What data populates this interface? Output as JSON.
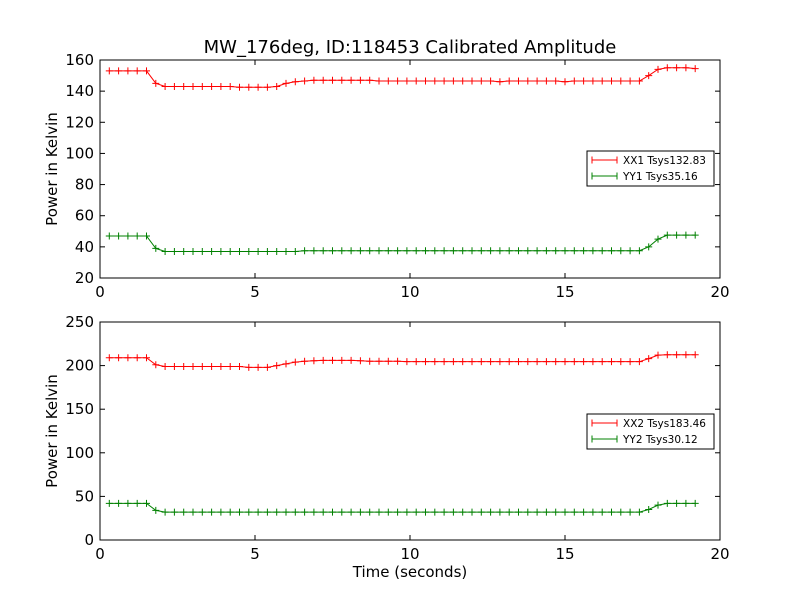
{
  "title": "MW_176deg, ID:118453 Calibrated Amplitude",
  "colors": {
    "xx": "#ff0000",
    "yy": "#008000",
    "axes": "#000000",
    "background": "#ffffff"
  },
  "chart_data": [
    {
      "type": "line",
      "title": "MW_176deg, ID:118453 Calibrated Amplitude",
      "xlabel": "",
      "ylabel": "Power in Kelvin",
      "xlim": [
        0,
        20
      ],
      "ylim": [
        20,
        160
      ],
      "xticks": [
        0,
        5,
        10,
        15,
        20
      ],
      "yticks": [
        20,
        40,
        60,
        80,
        100,
        120,
        140,
        160
      ],
      "grid": false,
      "legend_position": "center-right",
      "x": [
        0.3,
        0.6,
        0.9,
        1.2,
        1.5,
        1.8,
        2.1,
        2.4,
        2.7,
        3.0,
        3.3,
        3.6,
        3.9,
        4.2,
        4.5,
        4.8,
        5.1,
        5.4,
        5.7,
        6.0,
        6.3,
        6.6,
        6.9,
        7.2,
        7.5,
        7.8,
        8.1,
        8.4,
        8.7,
        9.0,
        9.3,
        9.6,
        9.9,
        10.2,
        10.5,
        10.8,
        11.1,
        11.4,
        11.7,
        12.0,
        12.3,
        12.6,
        12.9,
        13.2,
        13.5,
        13.8,
        14.1,
        14.4,
        14.7,
        15.0,
        15.3,
        15.6,
        15.9,
        16.2,
        16.5,
        16.8,
        17.1,
        17.4,
        17.7,
        18.0,
        18.3,
        18.6,
        18.9,
        19.2
      ],
      "series": [
        {
          "name": "XX1 Tsys132.83",
          "color": "#ff0000",
          "values": [
            153,
            153,
            153,
            153,
            153,
            145,
            143,
            143,
            143,
            143,
            143,
            143,
            143,
            143,
            142.5,
            142.5,
            142.5,
            142.5,
            143,
            145,
            146,
            146.5,
            147,
            147,
            147,
            147,
            147,
            147,
            147,
            146.5,
            146.5,
            146.5,
            146.5,
            146.5,
            146.5,
            146.5,
            146.5,
            146.5,
            146.5,
            146.5,
            146.5,
            146.5,
            146,
            146.5,
            146.5,
            146.5,
            146.5,
            146.5,
            146.5,
            146,
            146.5,
            146.5,
            146.5,
            146.5,
            146.5,
            146.5,
            146.5,
            146.5,
            150,
            154,
            155,
            155,
            155,
            154.5
          ]
        },
        {
          "name": "YY1 Tsys35.16",
          "color": "#008000",
          "values": [
            47,
            47,
            47,
            47,
            47,
            39,
            37,
            37,
            37,
            37,
            37,
            37,
            37,
            37,
            37,
            37,
            37,
            37,
            37,
            37,
            37,
            37.5,
            37.5,
            37.5,
            37.5,
            37.5,
            37.5,
            37.5,
            37.5,
            37.5,
            37.5,
            37.5,
            37.5,
            37.5,
            37.5,
            37.5,
            37.5,
            37.5,
            37.5,
            37.5,
            37.5,
            37.5,
            37.5,
            37.5,
            37.5,
            37.5,
            37.5,
            37.5,
            37.5,
            37.5,
            37.5,
            37.5,
            37.5,
            37.5,
            37.5,
            37.5,
            37.5,
            37.5,
            40,
            45,
            47.5,
            47.5,
            47.5,
            47.5
          ]
        }
      ]
    },
    {
      "type": "line",
      "title": "",
      "xlabel": "Time (seconds)",
      "ylabel": "Power in Kelvin",
      "xlim": [
        0,
        20
      ],
      "ylim": [
        0,
        250
      ],
      "xticks": [
        0,
        5,
        10,
        15,
        20
      ],
      "yticks": [
        0,
        50,
        100,
        150,
        200,
        250
      ],
      "grid": false,
      "legend_position": "center-right",
      "x": [
        0.3,
        0.6,
        0.9,
        1.2,
        1.5,
        1.8,
        2.1,
        2.4,
        2.7,
        3.0,
        3.3,
        3.6,
        3.9,
        4.2,
        4.5,
        4.8,
        5.1,
        5.4,
        5.7,
        6.0,
        6.3,
        6.6,
        6.9,
        7.2,
        7.5,
        7.8,
        8.1,
        8.4,
        8.7,
        9.0,
        9.3,
        9.6,
        9.9,
        10.2,
        10.5,
        10.8,
        11.1,
        11.4,
        11.7,
        12.0,
        12.3,
        12.6,
        12.9,
        13.2,
        13.5,
        13.8,
        14.1,
        14.4,
        14.7,
        15.0,
        15.3,
        15.6,
        15.9,
        16.2,
        16.5,
        16.8,
        17.1,
        17.4,
        17.7,
        18.0,
        18.3,
        18.6,
        18.9,
        19.2
      ],
      "series": [
        {
          "name": "XX2 Tsys183.46",
          "color": "#ff0000",
          "values": [
            209,
            209,
            209,
            209,
            209,
            201,
            199,
            199,
            199,
            199,
            199,
            199,
            199,
            199,
            199,
            198,
            198,
            198,
            200,
            202,
            204,
            205,
            205.5,
            206,
            206,
            206,
            206,
            205.5,
            205,
            205,
            205,
            205,
            204.5,
            204.5,
            204.5,
            204.5,
            204.5,
            204.5,
            204.5,
            204.5,
            204.5,
            204.5,
            204.5,
            204.5,
            204.5,
            204.5,
            204.5,
            204.5,
            204.5,
            204.5,
            204.5,
            204.5,
            204.5,
            204.5,
            204.5,
            204.5,
            204.5,
            204.5,
            208,
            212,
            212.5,
            212.5,
            212.5,
            212.5
          ]
        },
        {
          "name": "YY2 Tsys30.12",
          "color": "#008000",
          "values": [
            42,
            42,
            42,
            42,
            42,
            34,
            32,
            32,
            32,
            32,
            32,
            32,
            32,
            32,
            32,
            32,
            32,
            32,
            32,
            32,
            32,
            32,
            32,
            32,
            32,
            32,
            32,
            32,
            32,
            32,
            32,
            32,
            32,
            32,
            32,
            32,
            32,
            32,
            32,
            32,
            32,
            32,
            32,
            32,
            32,
            32,
            32,
            32,
            32,
            32,
            32,
            32,
            32,
            32,
            32,
            32,
            32,
            32,
            35,
            40,
            42,
            42,
            42,
            42
          ]
        }
      ]
    }
  ]
}
